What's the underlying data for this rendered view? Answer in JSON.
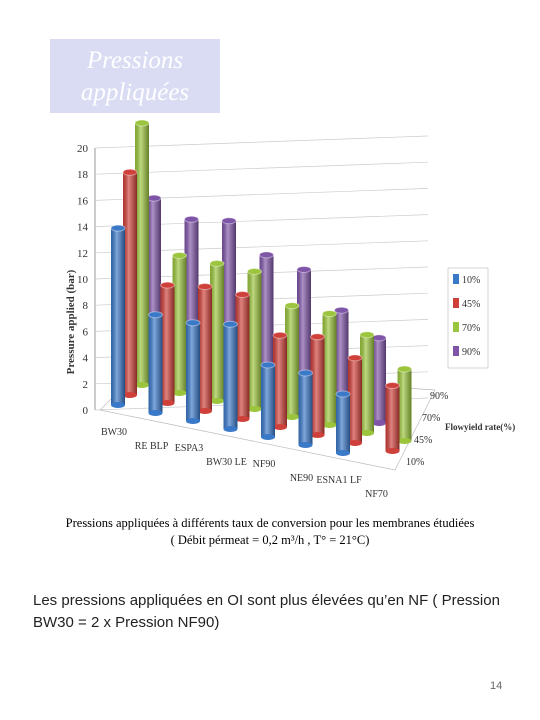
{
  "slide": {
    "title": "Pressions appliquées",
    "caption_lines": [
      "Pressions appliquées à différents taux de conversion pour les membranes étudiées",
      "( Débit pérmeat = 0,2 m³/h , T° = 21°C)"
    ],
    "body": "Les pressions appliquées en OI sont plus élevées qu’en NF ( Pression BW30 = 2 x Pression NF90)",
    "page_number": "14"
  },
  "chart_data": {
    "type": "bar",
    "y_label": "Pressure applied (bar)",
    "z_label": "Flowyield rate(%)",
    "categories": [
      "BW30",
      "RE BLP",
      "ESPA3",
      "BW30 LE",
      "NF90",
      "NE90",
      "ESNA1 LF",
      "NF70"
    ],
    "series": [
      {
        "name": "10%",
        "color": "#3a78c8",
        "values": [
          13.5,
          7.5,
          7.5,
          8,
          5.5,
          5.5,
          4.5,
          null
        ]
      },
      {
        "name": "45%",
        "color": "#d0403a",
        "values": [
          17,
          9,
          9.5,
          9.5,
          7,
          7.5,
          6.5,
          5
        ]
      },
      {
        "name": "70%",
        "color": "#9bc53c",
        "values": [
          20,
          10.5,
          10.5,
          10.5,
          8.5,
          8.5,
          7.5,
          5.5
        ]
      },
      {
        "name": "90%",
        "color": "#7f55a8",
        "values": [
          13.5,
          12.5,
          13,
          11,
          10.5,
          8,
          6.5,
          null
        ]
      }
    ],
    "ylim": [
      0,
      20
    ],
    "yticks": [
      0,
      2,
      4,
      6,
      8,
      10,
      12,
      14,
      16,
      18,
      20
    ],
    "grid": true,
    "legend": "right"
  }
}
